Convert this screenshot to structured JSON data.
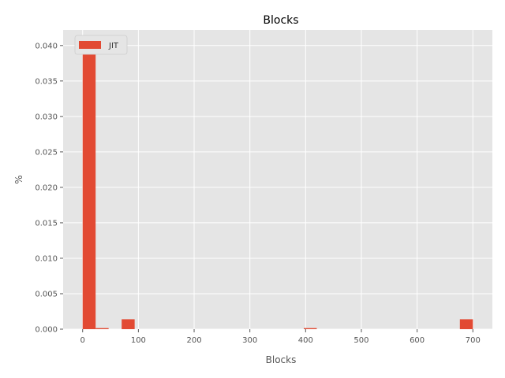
{
  "chart_data": {
    "type": "bar",
    "title": "Blocks",
    "xlabel": "Blocks",
    "ylabel": "%",
    "xlim": [
      -35,
      735
    ],
    "ylim": [
      0,
      0.0422
    ],
    "xticks": [
      "0",
      "100",
      "200",
      "300",
      "400",
      "500",
      "600",
      "700"
    ],
    "yticks": [
      "0.000",
      "0.005",
      "0.010",
      "0.015",
      "0.020",
      "0.025",
      "0.030",
      "0.035",
      "0.040"
    ],
    "grid": true,
    "legend_position": "top-left",
    "bin_width": 23.3,
    "series": [
      {
        "name": "JIT",
        "color": "#E24A33",
        "bins": [
          {
            "x": 0,
            "value": 0.0398
          },
          {
            "x": 23.3,
            "value": 0.00015
          },
          {
            "x": 70,
            "value": 0.0014
          },
          {
            "x": 396.7,
            "value": 0.00015
          },
          {
            "x": 676.7,
            "value": 0.0014
          }
        ]
      }
    ]
  }
}
